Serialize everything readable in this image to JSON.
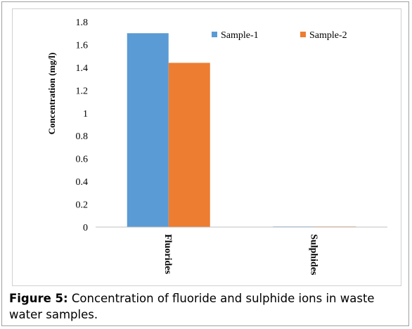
{
  "chart_data": {
    "type": "bar",
    "categories": [
      "Fluorides",
      "Sulphides"
    ],
    "series": [
      {
        "name": "Sample-1",
        "values": [
          1.7,
          0.005
        ],
        "color": "#5b9bd5"
      },
      {
        "name": "Sample-2",
        "values": [
          1.44,
          0.005
        ],
        "color": "#ed7d31"
      }
    ],
    "ylabel": "Concentration (mg/l)",
    "yticks": [
      "0",
      "0.2",
      "0.4",
      "0.6",
      "0.8",
      "1",
      "1.2",
      "1.4",
      "1.6",
      "1.8"
    ],
    "ylim": [
      0,
      1.8
    ],
    "legend": "top-right",
    "grid": false
  },
  "caption": {
    "label": "Figure 5:",
    "text": " Concentration of fluoride and sulphide ions in waste water samples."
  }
}
